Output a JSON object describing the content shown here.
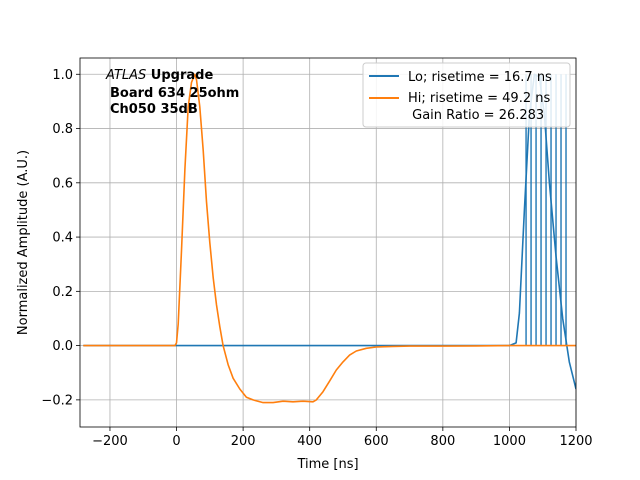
{
  "chart_data": {
    "type": "line",
    "xlabel": "Time [ns]",
    "ylabel": "Normalized Amplitude (A.U.)",
    "xlim": [
      -290,
      1200
    ],
    "ylim": [
      -0.3,
      1.06
    ],
    "xticks": [
      -200,
      0,
      200,
      400,
      600,
      800,
      1000,
      1200
    ],
    "yticks": [
      -0.2,
      0.0,
      0.2,
      0.4,
      0.6,
      0.8,
      1.0
    ],
    "xtick_labels": [
      "−200",
      "0",
      "200",
      "400",
      "600",
      "800",
      "1000",
      "1200"
    ],
    "ytick_labels": [
      "−0.2",
      "0.0",
      "0.2",
      "0.4",
      "0.6",
      "0.8",
      "1.0"
    ],
    "grid": true,
    "legend_position": "upper right",
    "annotation": {
      "line1_italic": "ATLAS",
      "line1_bold": " Upgrade",
      "line2": "Board 634 25ohm",
      "line3": "Ch050 35dB"
    },
    "series": [
      {
        "name": "Lo; risetime = 16.7 ns",
        "color": "#1f77b4",
        "x": [
          -280,
          1000,
          1020,
          1030,
          1045,
          1060,
          1075,
          1090,
          1105,
          1120,
          1140,
          1160,
          1180,
          1200
        ],
        "y": [
          0.0,
          0.0,
          0.01,
          0.12,
          0.5,
          0.85,
          1.0,
          0.99,
          0.85,
          0.6,
          0.33,
          0.1,
          -0.06,
          -0.16
        ],
        "gate_lines_x": [
          1050,
          1065,
          1080,
          1095,
          1110,
          1125,
          1140,
          1155,
          1170
        ]
      },
      {
        "name": "Hi; risetime = 49.2 ns\n Gain Ratio = 26.283",
        "color": "#ff7f0e",
        "x": [
          -280,
          -5,
          0,
          5,
          15,
          25,
          35,
          45,
          55,
          60,
          70,
          80,
          90,
          100,
          110,
          120,
          130,
          140,
          155,
          170,
          190,
          210,
          230,
          260,
          290,
          320,
          350,
          380,
          410,
          420,
          440,
          460,
          480,
          500,
          520,
          540,
          570,
          600,
          650,
          700,
          800,
          900,
          1000,
          1100,
          1200
        ],
        "y": [
          0.0,
          0.0,
          0.01,
          0.08,
          0.35,
          0.65,
          0.88,
          0.97,
          1.0,
          0.98,
          0.88,
          0.72,
          0.53,
          0.38,
          0.25,
          0.15,
          0.07,
          0.0,
          -0.07,
          -0.12,
          -0.16,
          -0.19,
          -0.2,
          -0.21,
          -0.21,
          -0.205,
          -0.207,
          -0.205,
          -0.207,
          -0.2,
          -0.17,
          -0.13,
          -0.09,
          -0.06,
          -0.035,
          -0.02,
          -0.01,
          -0.005,
          -0.003,
          -0.002,
          -0.002,
          -0.001,
          0.0,
          0.0,
          0.0
        ]
      }
    ]
  }
}
